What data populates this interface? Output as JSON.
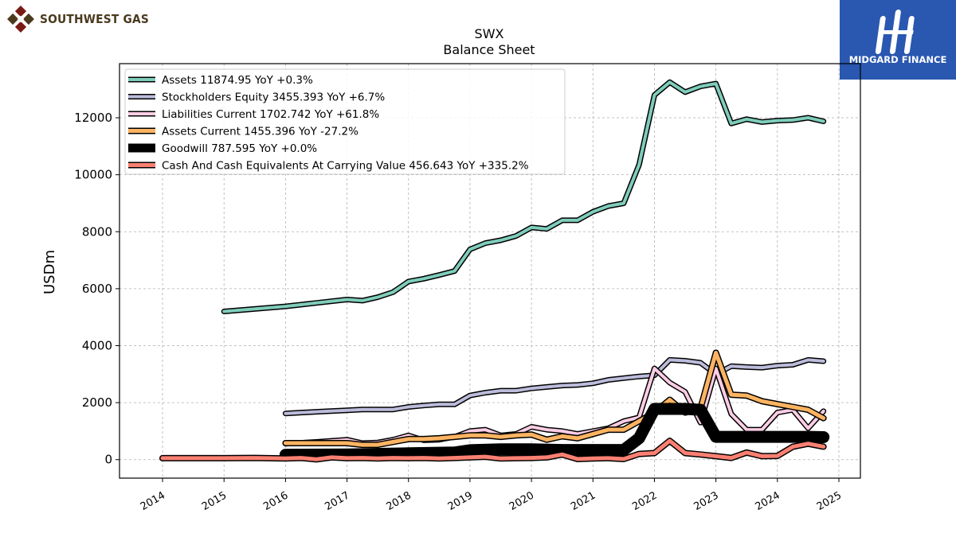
{
  "logos": {
    "left_text": "SOUTHWEST GAS",
    "right_text": "MIDGARD FINANCE"
  },
  "chart_data": {
    "type": "line",
    "title": "SWX",
    "subtitle": "Balance  Sheet",
    "xlabel": "",
    "ylabel": "USDm",
    "xlim": [
      2013.3,
      2025.35
    ],
    "ylim": [
      -650,
      13900
    ],
    "x_ticks": [
      2014,
      2015,
      2016,
      2017,
      2018,
      2019,
      2020,
      2021,
      2022,
      2023,
      2024,
      2025
    ],
    "x_tick_labels": [
      "2014",
      "2015",
      "2016",
      "2017",
      "2018",
      "2019",
      "2020",
      "2021",
      "2022",
      "2023",
      "2024",
      "2025"
    ],
    "y_ticks": [
      0,
      2000,
      4000,
      6000,
      8000,
      10000,
      12000
    ],
    "y_tick_labels": [
      "0",
      "2000",
      "4000",
      "6000",
      "8000",
      "10000",
      "12000"
    ],
    "grid": true,
    "legend_position": "top-left",
    "series": [
      {
        "name": "Assets",
        "legend_label": "Assets  11874.95 YoY +0.3%",
        "color": "#7fcdbb",
        "width": 4,
        "points": [
          [
            2015.0,
            5200
          ],
          [
            2016.0,
            5380
          ],
          [
            2016.5,
            5500
          ],
          [
            2017.0,
            5620
          ],
          [
            2017.25,
            5580
          ],
          [
            2017.5,
            5700
          ],
          [
            2017.75,
            5880
          ],
          [
            2018.0,
            6250
          ],
          [
            2018.25,
            6350
          ],
          [
            2018.5,
            6480
          ],
          [
            2018.75,
            6620
          ],
          [
            2019.0,
            7380
          ],
          [
            2019.25,
            7600
          ],
          [
            2019.5,
            7700
          ],
          [
            2019.75,
            7850
          ],
          [
            2020.0,
            8150
          ],
          [
            2020.25,
            8100
          ],
          [
            2020.5,
            8400
          ],
          [
            2020.75,
            8400
          ],
          [
            2021.0,
            8700
          ],
          [
            2021.25,
            8900
          ],
          [
            2021.5,
            9000
          ],
          [
            2021.75,
            10350
          ],
          [
            2022.0,
            12800
          ],
          [
            2022.25,
            13250
          ],
          [
            2022.5,
            12900
          ],
          [
            2022.75,
            13100
          ],
          [
            2023.0,
            13200
          ],
          [
            2023.25,
            11800
          ],
          [
            2023.5,
            11950
          ],
          [
            2023.75,
            11850
          ],
          [
            2024.0,
            11900
          ],
          [
            2024.25,
            11920
          ],
          [
            2024.5,
            12000
          ],
          [
            2024.75,
            11875
          ]
        ]
      },
      {
        "name": "Stockholders Equity",
        "legend_label": "Stockholders Equity  3455.393 YoY +6.7%",
        "color": "#bcbddc",
        "width": 4,
        "points": [
          [
            2016.0,
            1620
          ],
          [
            2016.5,
            1680
          ],
          [
            2017.0,
            1730
          ],
          [
            2017.25,
            1760
          ],
          [
            2017.5,
            1760
          ],
          [
            2017.75,
            1760
          ],
          [
            2018.0,
            1850
          ],
          [
            2018.25,
            1900
          ],
          [
            2018.5,
            1940
          ],
          [
            2018.75,
            1940
          ],
          [
            2019.0,
            2250
          ],
          [
            2019.25,
            2350
          ],
          [
            2019.5,
            2420
          ],
          [
            2019.75,
            2420
          ],
          [
            2020.0,
            2500
          ],
          [
            2020.25,
            2550
          ],
          [
            2020.5,
            2600
          ],
          [
            2020.75,
            2620
          ],
          [
            2021.0,
            2680
          ],
          [
            2021.25,
            2800
          ],
          [
            2021.5,
            2860
          ],
          [
            2021.75,
            2920
          ],
          [
            2022.0,
            2960
          ],
          [
            2022.25,
            3500
          ],
          [
            2022.5,
            3470
          ],
          [
            2022.75,
            3400
          ],
          [
            2023.0,
            3000
          ],
          [
            2023.25,
            3280
          ],
          [
            2023.5,
            3250
          ],
          [
            2023.75,
            3230
          ],
          [
            2024.0,
            3300
          ],
          [
            2024.25,
            3330
          ],
          [
            2024.5,
            3500
          ],
          [
            2024.75,
            3455
          ]
        ]
      },
      {
        "name": "Liabilities Current",
        "legend_label": "Liabilities Current  1702.742 YoY +61.8%",
        "color": "#fccde5",
        "width": 4,
        "points": [
          [
            2016.0,
            560
          ],
          [
            2016.5,
            620
          ],
          [
            2017.0,
            700
          ],
          [
            2017.25,
            580
          ],
          [
            2017.5,
            600
          ],
          [
            2017.75,
            700
          ],
          [
            2018.0,
            850
          ],
          [
            2018.25,
            680
          ],
          [
            2018.5,
            700
          ],
          [
            2018.75,
            800
          ],
          [
            2019.0,
            1000
          ],
          [
            2019.25,
            1050
          ],
          [
            2019.5,
            850
          ],
          [
            2019.75,
            900
          ],
          [
            2020.0,
            1150
          ],
          [
            2020.25,
            1050
          ],
          [
            2020.5,
            1000
          ],
          [
            2020.75,
            900
          ],
          [
            2021.0,
            1000
          ],
          [
            2021.25,
            1100
          ],
          [
            2021.5,
            1350
          ],
          [
            2021.75,
            1480
          ],
          [
            2022.0,
            3200
          ],
          [
            2022.25,
            2700
          ],
          [
            2022.5,
            2380
          ],
          [
            2022.75,
            1300
          ],
          [
            2023.0,
            3200
          ],
          [
            2023.25,
            1600
          ],
          [
            2023.5,
            1050
          ],
          [
            2023.75,
            1050
          ],
          [
            2024.0,
            1650
          ],
          [
            2024.25,
            1750
          ],
          [
            2024.5,
            1100
          ],
          [
            2024.75,
            1700
          ]
        ]
      },
      {
        "name": "Assets Current",
        "legend_label": "Assets Current  1455.396 YoY -27.2%",
        "color": "#fdb462",
        "width": 5,
        "points": [
          [
            2016.0,
            580
          ],
          [
            2016.5,
            580
          ],
          [
            2017.0,
            580
          ],
          [
            2017.25,
            520
          ],
          [
            2017.5,
            520
          ],
          [
            2017.75,
            620
          ],
          [
            2018.0,
            720
          ],
          [
            2018.25,
            720
          ],
          [
            2018.5,
            750
          ],
          [
            2018.75,
            800
          ],
          [
            2019.0,
            850
          ],
          [
            2019.25,
            850
          ],
          [
            2019.5,
            800
          ],
          [
            2019.75,
            850
          ],
          [
            2020.0,
            880
          ],
          [
            2020.25,
            700
          ],
          [
            2020.5,
            820
          ],
          [
            2020.75,
            750
          ],
          [
            2021.0,
            900
          ],
          [
            2021.25,
            1050
          ],
          [
            2021.5,
            1050
          ],
          [
            2021.75,
            1350
          ],
          [
            2022.0,
            1650
          ],
          [
            2022.25,
            2100
          ],
          [
            2022.5,
            1650
          ],
          [
            2022.75,
            1800
          ],
          [
            2023.0,
            3750
          ],
          [
            2023.25,
            2280
          ],
          [
            2023.5,
            2250
          ],
          [
            2023.75,
            2050
          ],
          [
            2024.0,
            1950
          ],
          [
            2024.25,
            1850
          ],
          [
            2024.5,
            1750
          ],
          [
            2024.75,
            1455
          ]
        ]
      },
      {
        "name": "Goodwill",
        "legend_label": "Goodwill  787.595 YoY +0.0%",
        "color": "#000000",
        "width": 12,
        "points": [
          [
            2016.0,
            170
          ],
          [
            2017.0,
            180
          ],
          [
            2018.0,
            220
          ],
          [
            2018.75,
            250
          ],
          [
            2019.0,
            330
          ],
          [
            2019.5,
            360
          ],
          [
            2020.0,
            360
          ],
          [
            2020.5,
            340
          ],
          [
            2021.0,
            340
          ],
          [
            2021.5,
            340
          ],
          [
            2021.75,
            750
          ],
          [
            2022.0,
            1780
          ],
          [
            2022.5,
            1780
          ],
          [
            2022.75,
            1750
          ],
          [
            2023.0,
            800
          ],
          [
            2023.5,
            800
          ],
          [
            2024.0,
            800
          ],
          [
            2024.5,
            800
          ],
          [
            2024.75,
            788
          ]
        ]
      },
      {
        "name": "Cash And Cash Equivalents At Carrying Value",
        "legend_label": "Cash And Cash Equivalents At Carrying Value  456.643 YoY +335.2%",
        "color": "#fb8072",
        "width": 5,
        "points": [
          [
            2014.0,
            50
          ],
          [
            2015.0,
            50
          ],
          [
            2015.5,
            60
          ],
          [
            2016.0,
            40
          ],
          [
            2016.25,
            60
          ],
          [
            2016.5,
            10
          ],
          [
            2016.75,
            80
          ],
          [
            2017.0,
            50
          ],
          [
            2017.25,
            60
          ],
          [
            2017.5,
            40
          ],
          [
            2017.75,
            60
          ],
          [
            2018.0,
            50
          ],
          [
            2018.25,
            60
          ],
          [
            2018.5,
            40
          ],
          [
            2018.75,
            60
          ],
          [
            2019.0,
            80
          ],
          [
            2019.25,
            100
          ],
          [
            2019.5,
            40
          ],
          [
            2019.75,
            50
          ],
          [
            2020.0,
            60
          ],
          [
            2020.25,
            80
          ],
          [
            2020.5,
            180
          ],
          [
            2020.75,
            20
          ],
          [
            2021.0,
            40
          ],
          [
            2021.25,
            50
          ],
          [
            2021.5,
            20
          ],
          [
            2021.75,
            200
          ],
          [
            2022.0,
            230
          ],
          [
            2022.25,
            660
          ],
          [
            2022.5,
            230
          ],
          [
            2022.75,
            180
          ],
          [
            2023.0,
            120
          ],
          [
            2023.25,
            60
          ],
          [
            2023.5,
            250
          ],
          [
            2023.75,
            120
          ],
          [
            2024.0,
            130
          ],
          [
            2024.25,
            450
          ],
          [
            2024.5,
            560
          ],
          [
            2024.75,
            457
          ]
        ]
      }
    ]
  }
}
